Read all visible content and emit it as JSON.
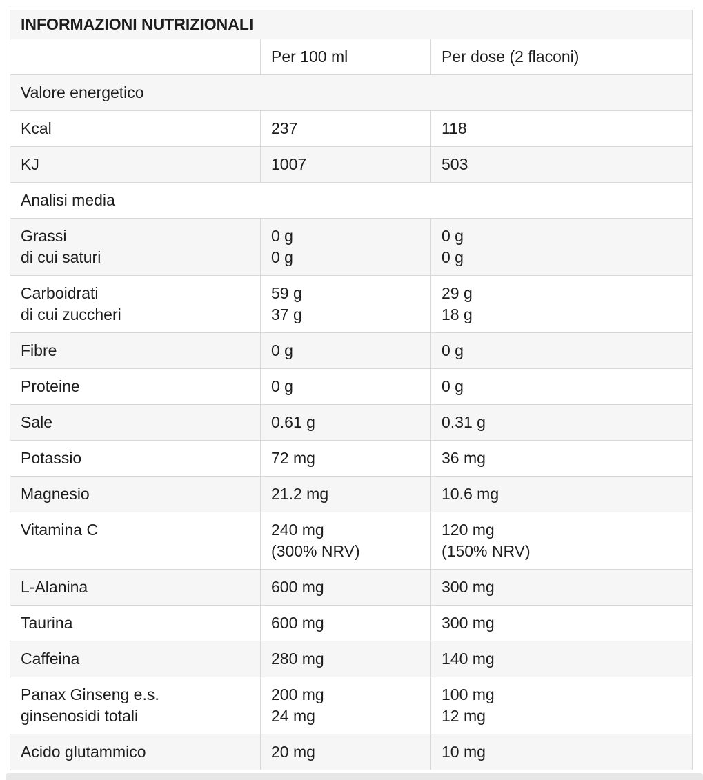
{
  "theme": {
    "text_color": "#1d1d1d",
    "border_color": "#d8d8d8",
    "stripe_color": "#f6f6f6",
    "row_white": "#ffffff",
    "bottom_strip_color": "#e7e7e7",
    "page_background": "#ffffff"
  },
  "table": {
    "title": "INFORMAZIONI NUTRIZIONALI",
    "columns": [
      "",
      "Per 100 ml",
      "Per dose (2 flaconi)"
    ],
    "rows": [
      {
        "type": "section",
        "label": "Valore energetico"
      },
      {
        "type": "data",
        "label": "Kcal",
        "per_100ml": "237",
        "per_dose": "118"
      },
      {
        "type": "data",
        "label": "KJ",
        "per_100ml": "1007",
        "per_dose": "503"
      },
      {
        "type": "section",
        "label": "Analisi media"
      },
      {
        "type": "data",
        "label": "Grassi\ndi cui saturi",
        "per_100ml": "0 g\n0 g",
        "per_dose": "0 g\n0 g"
      },
      {
        "type": "data",
        "label": "Carboidrati\ndi cui zuccheri",
        "per_100ml": "59 g\n37 g",
        "per_dose": "29 g\n18 g"
      },
      {
        "type": "data",
        "label": "Fibre",
        "per_100ml": "0 g",
        "per_dose": "0 g"
      },
      {
        "type": "data",
        "label": "Proteine",
        "per_100ml": "0 g",
        "per_dose": "0 g"
      },
      {
        "type": "data",
        "label": "Sale",
        "per_100ml": "0.61 g",
        "per_dose": "0.31 g"
      },
      {
        "type": "data",
        "label": "Potassio",
        "per_100ml": "72 mg",
        "per_dose": "36 mg"
      },
      {
        "type": "data",
        "label": "Magnesio",
        "per_100ml": "21.2 mg",
        "per_dose": "10.6 mg"
      },
      {
        "type": "data",
        "label": "Vitamina C",
        "per_100ml": "240 mg\n(300% NRV)",
        "per_dose": "120 mg\n(150% NRV)"
      },
      {
        "type": "data",
        "label": "L-Alanina",
        "per_100ml": "600 mg",
        "per_dose": "300 mg"
      },
      {
        "type": "data",
        "label": "Taurina",
        "per_100ml": "600 mg",
        "per_dose": "300 mg"
      },
      {
        "type": "data",
        "label": "Caffeina",
        "per_100ml": "280 mg",
        "per_dose": "140 mg"
      },
      {
        "type": "data",
        "label": "Panax Ginseng e.s.\nginsenosidi totali",
        "per_100ml": "200 mg\n24 mg",
        "per_dose": "100 mg\n12 mg"
      },
      {
        "type": "data",
        "label": "Acido glutammico",
        "per_100ml": "20 mg",
        "per_dose": "10 mg"
      }
    ]
  }
}
